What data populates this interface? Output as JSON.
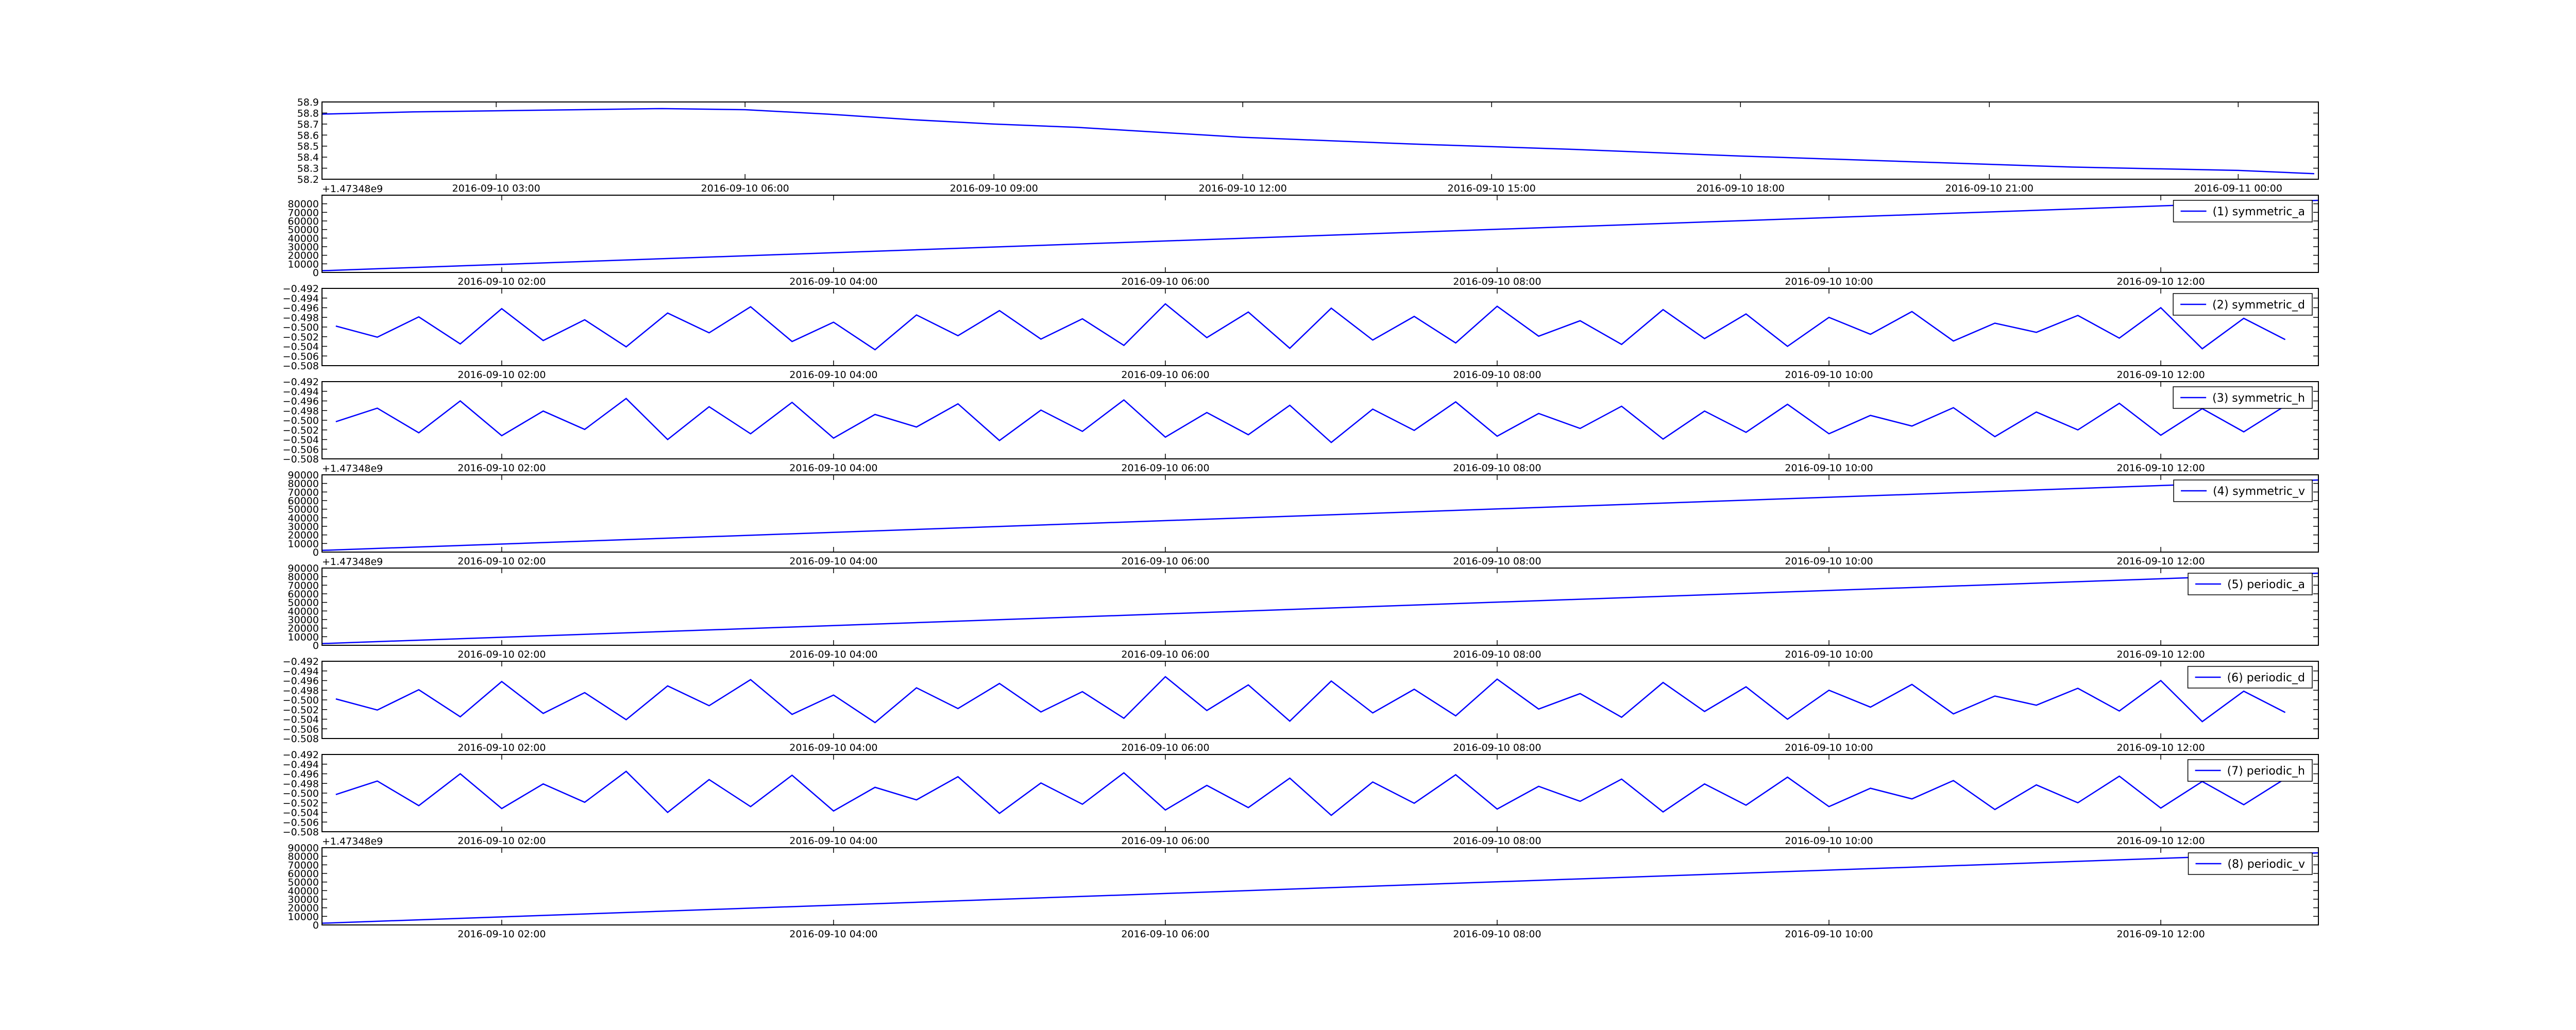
{
  "chart_data": [
    {
      "type": "line",
      "xlim": [
        "2016-09-10 00:54",
        "2016-09-11 00:58"
      ],
      "xticks": [
        "2016-09-10 03:00",
        "2016-09-10 06:00",
        "2016-09-10 09:00",
        "2016-09-10 12:00",
        "2016-09-10 15:00",
        "2016-09-10 18:00",
        "2016-09-10 21:00",
        "2016-09-11 00:00"
      ],
      "ylim": [
        58.2,
        58.9
      ],
      "yticks": [
        58.2,
        58.3,
        58.4,
        58.5,
        58.6,
        58.7,
        58.8,
        58.9
      ],
      "x": [
        "2016-09-10 00:54",
        "2016-09-10 02:00",
        "2016-09-10 03:00",
        "2016-09-10 04:00",
        "2016-09-10 05:00",
        "2016-09-10 06:00",
        "2016-09-10 07:00",
        "2016-09-10 08:00",
        "2016-09-10 09:00",
        "2016-09-10 10:00",
        "2016-09-10 12:00",
        "2016-09-10 14:00",
        "2016-09-10 16:00",
        "2016-09-10 18:00",
        "2016-09-10 20:00",
        "2016-09-10 22:00",
        "2016-09-11 00:00",
        "2016-09-11 00:55"
      ],
      "series": [
        {
          "color": "#0000ff",
          "values": [
            58.79,
            58.81,
            58.82,
            58.83,
            58.84,
            58.83,
            58.79,
            58.74,
            58.7,
            58.67,
            58.58,
            58.52,
            58.47,
            58.41,
            58.36,
            58.31,
            58.28,
            58.25
          ]
        }
      ]
    },
    {
      "type": "line",
      "xlim": [
        "2016-09-10 00:55",
        "2016-09-10 12:57"
      ],
      "xticks": [
        "2016-09-10 02:00",
        "2016-09-10 04:00",
        "2016-09-10 06:00",
        "2016-09-10 08:00",
        "2016-09-10 10:00",
        "2016-09-10 12:00"
      ],
      "ylim": [
        0,
        90000
      ],
      "yticks": [
        0,
        10000,
        20000,
        30000,
        40000,
        50000,
        60000,
        70000,
        80000
      ],
      "offset_text": "+1.47348e9",
      "x": [
        "2016-09-10 00:55",
        "2016-09-10 12:57"
      ],
      "series": [
        {
          "name": "(1) symmetric_a",
          "color": "#0000ff",
          "values": [
            2000,
            84000
          ]
        }
      ]
    },
    {
      "type": "line",
      "xlim": [
        "2016-09-10 00:55",
        "2016-09-10 12:57"
      ],
      "xticks": [
        "2016-09-10 02:00",
        "2016-09-10 04:00",
        "2016-09-10 06:00",
        "2016-09-10 08:00",
        "2016-09-10 10:00",
        "2016-09-10 12:00"
      ],
      "ylim": [
        -0.508,
        -0.492
      ],
      "yticks": [
        {
          "value": -0.508,
          "label": "−0.508"
        },
        {
          "value": -0.506,
          "label": "−0.506"
        },
        {
          "value": -0.504,
          "label": "−0.504"
        },
        {
          "value": -0.502,
          "label": "−0.502"
        },
        {
          "value": -0.5,
          "label": "−0.500"
        },
        {
          "value": -0.498,
          "label": "−0.498"
        },
        {
          "value": -0.496,
          "label": "−0.496"
        },
        {
          "value": -0.494,
          "label": "−0.494"
        },
        {
          "value": -0.492,
          "label": "−0.492"
        }
      ],
      "x": [
        "2016-09-10 01:00",
        "2016-09-10 01:15",
        "2016-09-10 01:30",
        "2016-09-10 01:45",
        "2016-09-10 02:00",
        "2016-09-10 02:15",
        "2016-09-10 02:30",
        "2016-09-10 02:45",
        "2016-09-10 03:00",
        "2016-09-10 03:15",
        "2016-09-10 03:30",
        "2016-09-10 03:45",
        "2016-09-10 04:00",
        "2016-09-10 04:15",
        "2016-09-10 04:30",
        "2016-09-10 04:45",
        "2016-09-10 05:00",
        "2016-09-10 05:15",
        "2016-09-10 05:30",
        "2016-09-10 05:45",
        "2016-09-10 06:00",
        "2016-09-10 06:15",
        "2016-09-10 06:30",
        "2016-09-10 06:45",
        "2016-09-10 07:00",
        "2016-09-10 07:15",
        "2016-09-10 07:30",
        "2016-09-10 07:45",
        "2016-09-10 08:00",
        "2016-09-10 08:15",
        "2016-09-10 08:30",
        "2016-09-10 08:45",
        "2016-09-10 09:00",
        "2016-09-10 09:15",
        "2016-09-10 09:30",
        "2016-09-10 09:45",
        "2016-09-10 10:00",
        "2016-09-10 10:15",
        "2016-09-10 10:30",
        "2016-09-10 10:45",
        "2016-09-10 11:00",
        "2016-09-10 11:15",
        "2016-09-10 11:30",
        "2016-09-10 11:45",
        "2016-09-10 12:00",
        "2016-09-10 12:15",
        "2016-09-10 12:30",
        "2016-09-10 12:45"
      ],
      "series": [
        {
          "name": "(2) symmetric_d",
          "color": "#0000ff",
          "values": [
            -0.4998,
            -0.5021,
            -0.4979,
            -0.5035,
            -0.4962,
            -0.5028,
            -0.4985,
            -0.5041,
            -0.4971,
            -0.5012,
            -0.4958,
            -0.503,
            -0.499,
            -0.5047,
            -0.4975,
            -0.5018,
            -0.4966,
            -0.5025,
            -0.4983,
            -0.5038,
            -0.4952,
            -0.5022,
            -0.4969,
            -0.5044,
            -0.4961,
            -0.5027,
            -0.4978,
            -0.5033,
            -0.4957,
            -0.5019,
            -0.4987,
            -0.5036,
            -0.4964,
            -0.5024,
            -0.4973,
            -0.504,
            -0.498,
            -0.5015,
            -0.4968,
            -0.5029,
            -0.4992,
            -0.5011,
            -0.4976,
            -0.5023,
            -0.496,
            -0.5045,
            -0.4982,
            -0.5026
          ]
        }
      ]
    },
    {
      "type": "line",
      "xlim": [
        "2016-09-10 00:55",
        "2016-09-10 12:57"
      ],
      "xticks": [
        "2016-09-10 02:00",
        "2016-09-10 04:00",
        "2016-09-10 06:00",
        "2016-09-10 08:00",
        "2016-09-10 10:00",
        "2016-09-10 12:00"
      ],
      "ylim": [
        -0.508,
        -0.492
      ],
      "yticks": [
        {
          "value": -0.508,
          "label": "−0.508"
        },
        {
          "value": -0.506,
          "label": "−0.506"
        },
        {
          "value": -0.504,
          "label": "−0.504"
        },
        {
          "value": -0.502,
          "label": "−0.502"
        },
        {
          "value": -0.5,
          "label": "−0.500"
        },
        {
          "value": -0.498,
          "label": "−0.498"
        },
        {
          "value": -0.496,
          "label": "−0.496"
        },
        {
          "value": -0.494,
          "label": "−0.494"
        },
        {
          "value": -0.492,
          "label": "−0.492"
        }
      ],
      "x": [
        "2016-09-10 01:00",
        "2016-09-10 01:15",
        "2016-09-10 01:30",
        "2016-09-10 01:45",
        "2016-09-10 02:00",
        "2016-09-10 02:15",
        "2016-09-10 02:30",
        "2016-09-10 02:45",
        "2016-09-10 03:00",
        "2016-09-10 03:15",
        "2016-09-10 03:30",
        "2016-09-10 03:45",
        "2016-09-10 04:00",
        "2016-09-10 04:15",
        "2016-09-10 04:30",
        "2016-09-10 04:45",
        "2016-09-10 05:00",
        "2016-09-10 05:15",
        "2016-09-10 05:30",
        "2016-09-10 05:45",
        "2016-09-10 06:00",
        "2016-09-10 06:15",
        "2016-09-10 06:30",
        "2016-09-10 06:45",
        "2016-09-10 07:00",
        "2016-09-10 07:15",
        "2016-09-10 07:30",
        "2016-09-10 07:45",
        "2016-09-10 08:00",
        "2016-09-10 08:15",
        "2016-09-10 08:30",
        "2016-09-10 08:45",
        "2016-09-10 09:00",
        "2016-09-10 09:15",
        "2016-09-10 09:30",
        "2016-09-10 09:45",
        "2016-09-10 10:00",
        "2016-09-10 10:15",
        "2016-09-10 10:30",
        "2016-09-10 10:45",
        "2016-09-10 11:00",
        "2016-09-10 11:15",
        "2016-09-10 11:30",
        "2016-09-10 11:45",
        "2016-09-10 12:00",
        "2016-09-10 12:15",
        "2016-09-10 12:30",
        "2016-09-10 12:45"
      ],
      "series": [
        {
          "name": "(3) symmetric_h",
          "color": "#0000ff",
          "values": [
            -0.5003,
            -0.4975,
            -0.5026,
            -0.496,
            -0.5032,
            -0.4981,
            -0.5019,
            -0.4955,
            -0.504,
            -0.4972,
            -0.5028,
            -0.4963,
            -0.5037,
            -0.4988,
            -0.5014,
            -0.4966,
            -0.5042,
            -0.4979,
            -0.5023,
            -0.4958,
            -0.5035,
            -0.4984,
            -0.503,
            -0.4969,
            -0.5046,
            -0.4977,
            -0.5021,
            -0.4962,
            -0.5033,
            -0.4986,
            -0.5017,
            -0.4971,
            -0.5039,
            -0.4981,
            -0.5025,
            -0.4967,
            -0.5028,
            -0.499,
            -0.5012,
            -0.4974,
            -0.5034,
            -0.4983,
            -0.502,
            -0.4965,
            -0.5031,
            -0.4976,
            -0.5024,
            -0.497
          ]
        }
      ]
    },
    {
      "type": "line",
      "xlim": [
        "2016-09-10 00:55",
        "2016-09-10 12:57"
      ],
      "xticks": [
        "2016-09-10 02:00",
        "2016-09-10 04:00",
        "2016-09-10 06:00",
        "2016-09-10 08:00",
        "2016-09-10 10:00",
        "2016-09-10 12:00"
      ],
      "ylim": [
        0,
        90000
      ],
      "yticks": [
        0,
        10000,
        20000,
        30000,
        40000,
        50000,
        60000,
        70000,
        80000,
        90000
      ],
      "offset_text": "+1.47348e9",
      "x": [
        "2016-09-10 00:55",
        "2016-09-10 12:57"
      ],
      "series": [
        {
          "name": "(4) symmetric_v",
          "color": "#0000ff",
          "values": [
            2000,
            84000
          ]
        }
      ]
    },
    {
      "type": "line",
      "xlim": [
        "2016-09-10 00:55",
        "2016-09-10 12:57"
      ],
      "xticks": [
        "2016-09-10 02:00",
        "2016-09-10 04:00",
        "2016-09-10 06:00",
        "2016-09-10 08:00",
        "2016-09-10 10:00",
        "2016-09-10 12:00"
      ],
      "ylim": [
        0,
        90000
      ],
      "yticks": [
        0,
        10000,
        20000,
        30000,
        40000,
        50000,
        60000,
        70000,
        80000,
        90000
      ],
      "offset_text": "+1.47348e9",
      "x": [
        "2016-09-10 00:55",
        "2016-09-10 12:57"
      ],
      "series": [
        {
          "name": "(5) periodic_a",
          "color": "#0000ff",
          "values": [
            2000,
            84000
          ]
        }
      ]
    },
    {
      "type": "line",
      "xlim": [
        "2016-09-10 00:55",
        "2016-09-10 12:57"
      ],
      "xticks": [
        "2016-09-10 02:00",
        "2016-09-10 04:00",
        "2016-09-10 06:00",
        "2016-09-10 08:00",
        "2016-09-10 10:00",
        "2016-09-10 12:00"
      ],
      "ylim": [
        -0.508,
        -0.492
      ],
      "yticks": [
        {
          "value": -0.508,
          "label": "−0.508"
        },
        {
          "value": -0.506,
          "label": "−0.506"
        },
        {
          "value": -0.504,
          "label": "−0.504"
        },
        {
          "value": -0.502,
          "label": "−0.502"
        },
        {
          "value": -0.5,
          "label": "−0.500"
        },
        {
          "value": -0.498,
          "label": "−0.498"
        },
        {
          "value": -0.496,
          "label": "−0.496"
        },
        {
          "value": -0.494,
          "label": "−0.494"
        },
        {
          "value": -0.492,
          "label": "−0.492"
        }
      ],
      "x": [
        "2016-09-10 01:00",
        "2016-09-10 01:15",
        "2016-09-10 01:30",
        "2016-09-10 01:45",
        "2016-09-10 02:00",
        "2016-09-10 02:15",
        "2016-09-10 02:30",
        "2016-09-10 02:45",
        "2016-09-10 03:00",
        "2016-09-10 03:15",
        "2016-09-10 03:30",
        "2016-09-10 03:45",
        "2016-09-10 04:00",
        "2016-09-10 04:15",
        "2016-09-10 04:30",
        "2016-09-10 04:45",
        "2016-09-10 05:00",
        "2016-09-10 05:15",
        "2016-09-10 05:30",
        "2016-09-10 05:45",
        "2016-09-10 06:00",
        "2016-09-10 06:15",
        "2016-09-10 06:30",
        "2016-09-10 06:45",
        "2016-09-10 07:00",
        "2016-09-10 07:15",
        "2016-09-10 07:30",
        "2016-09-10 07:45",
        "2016-09-10 08:00",
        "2016-09-10 08:15",
        "2016-09-10 08:30",
        "2016-09-10 08:45",
        "2016-09-10 09:00",
        "2016-09-10 09:15",
        "2016-09-10 09:30",
        "2016-09-10 09:45",
        "2016-09-10 10:00",
        "2016-09-10 10:15",
        "2016-09-10 10:30",
        "2016-09-10 10:45",
        "2016-09-10 11:00",
        "2016-09-10 11:15",
        "2016-09-10 11:30",
        "2016-09-10 11:45",
        "2016-09-10 12:00",
        "2016-09-10 12:15",
        "2016-09-10 12:30",
        "2016-09-10 12:45"
      ],
      "series": [
        {
          "name": "(6) periodic_d",
          "color": "#0000ff",
          "values": [
            -0.4998,
            -0.5021,
            -0.4979,
            -0.5035,
            -0.4962,
            -0.5028,
            -0.4985,
            -0.5041,
            -0.4971,
            -0.5012,
            -0.4958,
            -0.503,
            -0.499,
            -0.5047,
            -0.4975,
            -0.5018,
            -0.4966,
            -0.5025,
            -0.4983,
            -0.5038,
            -0.4952,
            -0.5022,
            -0.4969,
            -0.5044,
            -0.4961,
            -0.5027,
            -0.4978,
            -0.5033,
            -0.4957,
            -0.5019,
            -0.4987,
            -0.5036,
            -0.4964,
            -0.5024,
            -0.4973,
            -0.504,
            -0.498,
            -0.5015,
            -0.4968,
            -0.5029,
            -0.4992,
            -0.5011,
            -0.4976,
            -0.5023,
            -0.496,
            -0.5045,
            -0.4982,
            -0.5026
          ]
        }
      ]
    },
    {
      "type": "line",
      "xlim": [
        "2016-09-10 00:55",
        "2016-09-10 12:57"
      ],
      "xticks": [
        "2016-09-10 02:00",
        "2016-09-10 04:00",
        "2016-09-10 06:00",
        "2016-09-10 08:00",
        "2016-09-10 10:00",
        "2016-09-10 12:00"
      ],
      "ylim": [
        -0.508,
        -0.492
      ],
      "yticks": [
        {
          "value": -0.508,
          "label": "−0.508"
        },
        {
          "value": -0.506,
          "label": "−0.506"
        },
        {
          "value": -0.504,
          "label": "−0.504"
        },
        {
          "value": -0.502,
          "label": "−0.502"
        },
        {
          "value": -0.5,
          "label": "−0.500"
        },
        {
          "value": -0.498,
          "label": "−0.498"
        },
        {
          "value": -0.496,
          "label": "−0.496"
        },
        {
          "value": -0.494,
          "label": "−0.494"
        },
        {
          "value": -0.492,
          "label": "−0.492"
        }
      ],
      "x": [
        "2016-09-10 01:00",
        "2016-09-10 01:15",
        "2016-09-10 01:30",
        "2016-09-10 01:45",
        "2016-09-10 02:00",
        "2016-09-10 02:15",
        "2016-09-10 02:30",
        "2016-09-10 02:45",
        "2016-09-10 03:00",
        "2016-09-10 03:15",
        "2016-09-10 03:30",
        "2016-09-10 03:45",
        "2016-09-10 04:00",
        "2016-09-10 04:15",
        "2016-09-10 04:30",
        "2016-09-10 04:45",
        "2016-09-10 05:00",
        "2016-09-10 05:15",
        "2016-09-10 05:30",
        "2016-09-10 05:45",
        "2016-09-10 06:00",
        "2016-09-10 06:15",
        "2016-09-10 06:30",
        "2016-09-10 06:45",
        "2016-09-10 07:00",
        "2016-09-10 07:15",
        "2016-09-10 07:30",
        "2016-09-10 07:45",
        "2016-09-10 08:00",
        "2016-09-10 08:15",
        "2016-09-10 08:30",
        "2016-09-10 08:45",
        "2016-09-10 09:00",
        "2016-09-10 09:15",
        "2016-09-10 09:30",
        "2016-09-10 09:45",
        "2016-09-10 10:00",
        "2016-09-10 10:15",
        "2016-09-10 10:30",
        "2016-09-10 10:45",
        "2016-09-10 11:00",
        "2016-09-10 11:15",
        "2016-09-10 11:30",
        "2016-09-10 11:45",
        "2016-09-10 12:00",
        "2016-09-10 12:15",
        "2016-09-10 12:30",
        "2016-09-10 12:45"
      ],
      "series": [
        {
          "name": "(7) periodic_h",
          "color": "#0000ff",
          "values": [
            -0.5003,
            -0.4975,
            -0.5026,
            -0.496,
            -0.5032,
            -0.4981,
            -0.5019,
            -0.4955,
            -0.504,
            -0.4972,
            -0.5028,
            -0.4963,
            -0.5037,
            -0.4988,
            -0.5014,
            -0.4966,
            -0.5042,
            -0.4979,
            -0.5023,
            -0.4958,
            -0.5035,
            -0.4984,
            -0.503,
            -0.4969,
            -0.5046,
            -0.4977,
            -0.5021,
            -0.4962,
            -0.5033,
            -0.4986,
            -0.5017,
            -0.4971,
            -0.5039,
            -0.4981,
            -0.5025,
            -0.4967,
            -0.5028,
            -0.499,
            -0.5012,
            -0.4974,
            -0.5034,
            -0.4983,
            -0.502,
            -0.4965,
            -0.5031,
            -0.4976,
            -0.5024,
            -0.497
          ]
        }
      ]
    },
    {
      "type": "line",
      "xlim": [
        "2016-09-10 00:55",
        "2016-09-10 12:57"
      ],
      "xticks": [
        "2016-09-10 02:00",
        "2016-09-10 04:00",
        "2016-09-10 06:00",
        "2016-09-10 08:00",
        "2016-09-10 10:00",
        "2016-09-10 12:00"
      ],
      "ylim": [
        0,
        90000
      ],
      "yticks": [
        0,
        10000,
        20000,
        30000,
        40000,
        50000,
        60000,
        70000,
        80000,
        90000
      ],
      "offset_text": "+1.47348e9",
      "x": [
        "2016-09-10 00:55",
        "2016-09-10 12:57"
      ],
      "series": [
        {
          "name": "(8) periodic_v",
          "color": "#0000ff",
          "values": [
            2000,
            84000
          ]
        }
      ]
    }
  ]
}
